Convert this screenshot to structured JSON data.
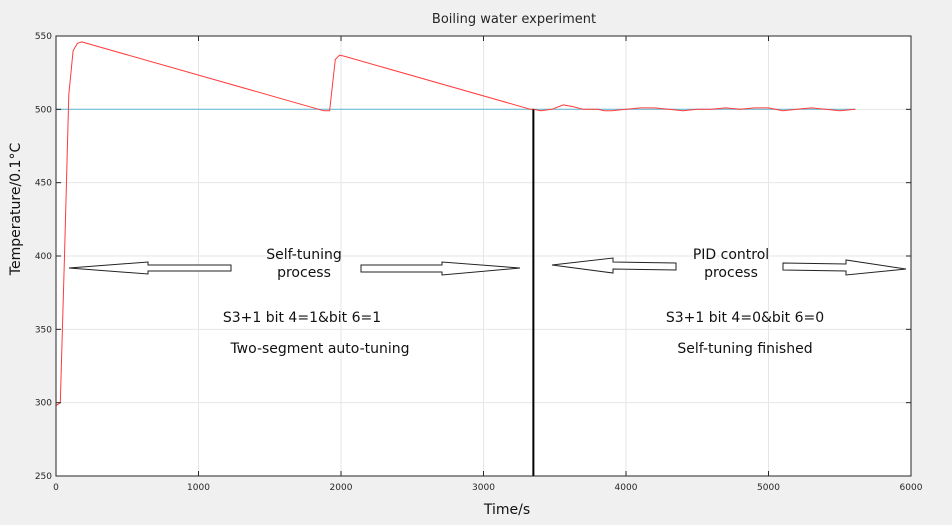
{
  "chart_data": {
    "type": "line",
    "title": "Boiling water experiment",
    "xlabel": "Time/s",
    "ylabel": "Temperature/0.1°C",
    "xlim": [
      0,
      6000
    ],
    "ylim": [
      250,
      550
    ],
    "xticks": [
      0,
      1000,
      2000,
      3000,
      4000,
      5000,
      6000
    ],
    "yticks": [
      250,
      300,
      350,
      400,
      450,
      500,
      550
    ],
    "grid": true,
    "colors": {
      "temperature": "#ff3b3b",
      "setpoint": "#5fb8d4",
      "divider": "#000000"
    },
    "series": [
      {
        "key": "temperature",
        "x": [
          0,
          30,
          60,
          90,
          120,
          150,
          180,
          1880,
          1920,
          1960,
          1990,
          2030,
          3330,
          3350,
          3400,
          3480,
          3560,
          3620,
          3700,
          3800,
          3850,
          3900,
          4000,
          4100,
          4200,
          4300,
          4400,
          4500,
          4600,
          4700,
          4800,
          4900,
          5000,
          5100,
          5200,
          5300,
          5400,
          5500,
          5610
        ],
        "y": [
          298,
          300,
          400,
          510,
          540,
          545,
          546,
          499,
          499,
          534,
          537,
          536,
          500,
          500,
          499,
          500,
          503,
          502,
          500,
          500,
          499,
          499,
          500,
          501,
          501,
          500,
          499,
          500,
          500,
          501,
          500,
          501,
          501,
          499,
          500,
          501,
          500,
          499,
          500
        ]
      },
      {
        "key": "setpoint",
        "x": [
          0,
          5610
        ],
        "y": [
          500,
          500
        ]
      }
    ],
    "divider_x": 3350,
    "annotations": {
      "left_phase": [
        "Self-tuning",
        "process"
      ],
      "left_setting": "S3+1  bit 4=1&bit 6=1",
      "left_mode": "Two-segment auto-tuning",
      "right_phase": [
        "PID control",
        "process"
      ],
      "right_setting": "S3+1  bit 4=0&bit 6=0",
      "right_mode": "Self-tuning finished"
    }
  }
}
